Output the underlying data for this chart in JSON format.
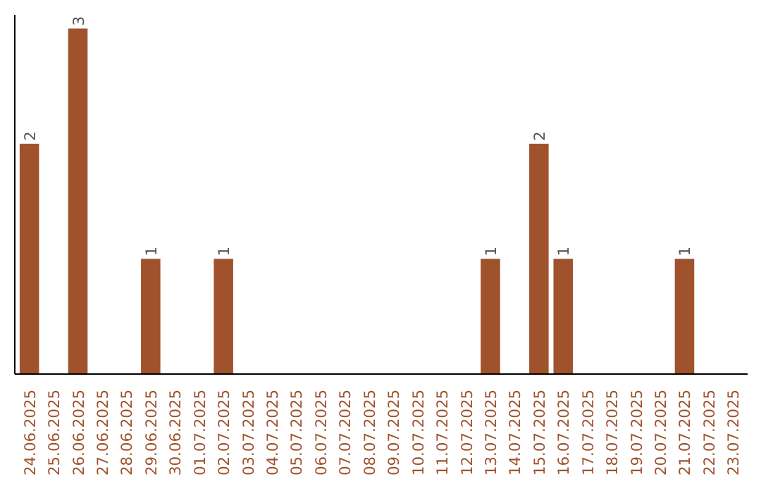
{
  "chart_data": {
    "type": "bar",
    "categories": [
      "24.06.2025",
      "25.06.2025",
      "26.06.2025",
      "27.06.2025",
      "28.06.2025",
      "29.06.2025",
      "30.06.2025",
      "01.07.2025",
      "02.07.2025",
      "03.07.2025",
      "04.07.2025",
      "05.07.2025",
      "06.07.2025",
      "07.07.2025",
      "08.07.2025",
      "09.07.2025",
      "10.07.2025",
      "11.07.2025",
      "12.07.2025",
      "13.07.2025",
      "14.07.2025",
      "15.07.2025",
      "16.07.2025",
      "17.07.2025",
      "18.07.2025",
      "19.07.2025",
      "20.07.2025",
      "21.07.2025",
      "22.07.2025",
      "23.07.2025"
    ],
    "values": [
      2,
      0,
      3,
      0,
      0,
      1,
      0,
      0,
      1,
      0,
      0,
      0,
      0,
      0,
      0,
      0,
      0,
      0,
      0,
      1,
      0,
      2,
      1,
      0,
      0,
      0,
      0,
      1,
      0,
      0
    ],
    "value_labels": [
      "2",
      null,
      "3",
      null,
      null,
      "1",
      null,
      null,
      "1",
      null,
      null,
      null,
      null,
      null,
      null,
      null,
      null,
      null,
      null,
      "1",
      null,
      "2",
      "1",
      null,
      null,
      null,
      null,
      "1",
      null,
      null
    ],
    "color": "#a0522d",
    "relative": false,
    "grid": false
  }
}
